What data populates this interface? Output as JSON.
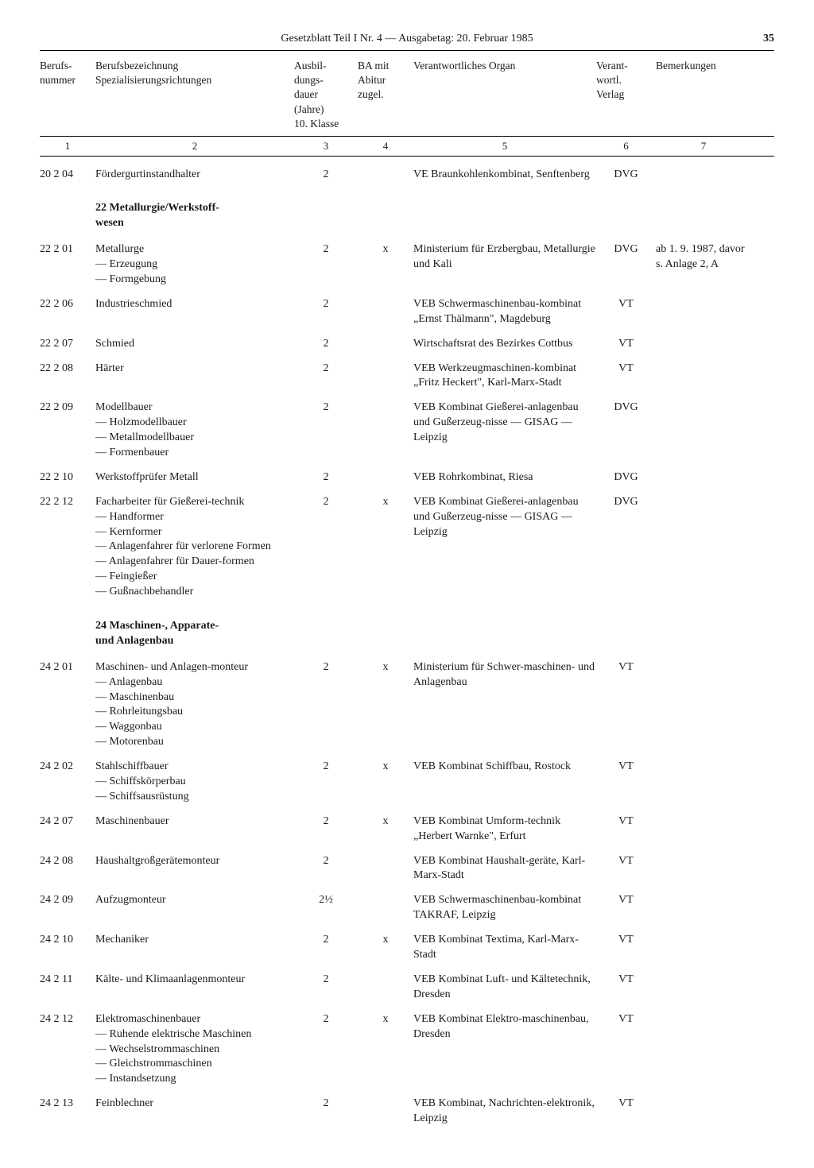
{
  "header": {
    "title": "Gesetzblatt Teil I Nr. 4 — Ausgabetag: 20. Februar 1985",
    "page": "35"
  },
  "columns": {
    "h1": "Berufs-\nnummer",
    "h2": "Berufsbezeichnung\nSpezialisierungsrichtungen",
    "h3": "Ausbil-\ndungs-\ndauer\n(Jahre)\n10. Klasse",
    "h4": "BA mit\nAbitur\nzugel.",
    "h5": "Verantwortliches Organ",
    "h6": "Verant-\nwortl.\nVerlag",
    "h7": "Bemerkungen",
    "n1": "1",
    "n2": "2",
    "n3": "3",
    "n4": "4",
    "n5": "5",
    "n6": "6",
    "n7": "7"
  },
  "sections": {
    "s22": "22  Metallurgie/Werkstoff-\nwesen",
    "s24": "24  Maschinen-, Apparate-\nund Anlagenbau"
  },
  "rows": {
    "r0": {
      "num": "20 2 04",
      "name": "Fördergurtinstandhalter",
      "dur": "2",
      "ba": "",
      "org": "VE Braunkohlenkombinat, Senftenberg",
      "ver": "DVG",
      "bem": ""
    },
    "r1": {
      "num": "22 2 01",
      "name": "Metallurge",
      "sub": [
        "Erzeugung",
        "Formgebung"
      ],
      "dur": "2",
      "ba": "x",
      "org": "Ministerium für Erzbergbau, Metallurgie und Kali",
      "ver": "DVG",
      "bem": "ab 1. 9. 1987, davor\ns. Anlage 2, A"
    },
    "r2": {
      "num": "22 2 06",
      "name": "Industrieschmied",
      "dur": "2",
      "ba": "",
      "org": "VEB Schwermaschinenbau-kombinat „Ernst Thälmann\", Magdeburg",
      "ver": "VT",
      "bem": ""
    },
    "r3": {
      "num": "22 2 07",
      "name": "Schmied",
      "dur": "2",
      "ba": "",
      "org": "Wirtschaftsrat des Bezirkes Cottbus",
      "ver": "VT",
      "bem": ""
    },
    "r4": {
      "num": "22 2 08",
      "name": "Härter",
      "dur": "2",
      "ba": "",
      "org": "VEB Werkzeugmaschinen-kombinat „Fritz Heckert\", Karl-Marx-Stadt",
      "ver": "VT",
      "bem": ""
    },
    "r5": {
      "num": "22 2 09",
      "name": "Modellbauer",
      "sub": [
        "Holzmodellbauer",
        "Metallmodellbauer",
        "Formenbauer"
      ],
      "dur": "2",
      "ba": "",
      "org": "VEB Kombinat Gießerei-anlagenbau und Gußerzeug-nisse — GISAG — Leipzig",
      "ver": "DVG",
      "bem": ""
    },
    "r6": {
      "num": "22 2 10",
      "name": "Werkstoffprüfer Metall",
      "dur": "2",
      "ba": "",
      "org": "VEB Rohrkombinat, Riesa",
      "ver": "DVG",
      "bem": ""
    },
    "r7": {
      "num": "22 2 12",
      "name": "Facharbeiter für Gießerei-technik",
      "sub": [
        "Handformer",
        "Kernformer",
        "Anlagenfahrer für verlorene Formen",
        "Anlagenfahrer für Dauer-formen",
        "Feingießer",
        "Gußnachbehandler"
      ],
      "dur": "2",
      "ba": "x",
      "org": "VEB Kombinat Gießerei-anlagenbau und Gußerzeug-nisse — GISAG — Leipzig",
      "ver": "DVG",
      "bem": ""
    },
    "r8": {
      "num": "24 2 01",
      "name": "Maschinen- und Anlagen-monteur",
      "sub": [
        "Anlagenbau",
        "Maschinenbau",
        "Rohrleitungsbau",
        "Waggonbau",
        "Motorenbau"
      ],
      "dur": "2",
      "ba": "x",
      "org": "Ministerium für Schwer-maschinen- und Anlagenbau",
      "ver": "VT",
      "bem": ""
    },
    "r9": {
      "num": "24 2 02",
      "name": "Stahlschiffbauer",
      "sub": [
        "Schiffskörperbau",
        "Schiffsausrüstung"
      ],
      "dur": "2",
      "ba": "x",
      "org": "VEB Kombinat Schiffbau, Rostock",
      "ver": "VT",
      "bem": ""
    },
    "r10": {
      "num": "24 2 07",
      "name": "Maschinenbauer",
      "dur": "2",
      "ba": "x",
      "org": "VEB Kombinat Umform-technik „Herbert Warnke\", Erfurt",
      "ver": "VT",
      "bem": ""
    },
    "r11": {
      "num": "24 2 08",
      "name": "Haushaltgroßgerätemonteur",
      "dur": "2",
      "ba": "",
      "org": "VEB Kombinat Haushalt-geräte, Karl-Marx-Stadt",
      "ver": "VT",
      "bem": ""
    },
    "r12": {
      "num": "24 2 09",
      "name": "Aufzugmonteur",
      "dur": "2½",
      "ba": "",
      "org": "VEB Schwermaschinenbau-kombinat TAKRAF, Leipzig",
      "ver": "VT",
      "bem": ""
    },
    "r13": {
      "num": "24 2 10",
      "name": "Mechaniker",
      "dur": "2",
      "ba": "x",
      "org": "VEB Kombinat Textima, Karl-Marx-Stadt",
      "ver": "VT",
      "bem": ""
    },
    "r14": {
      "num": "24 2 11",
      "name": "Kälte- und Klimaanlagenmonteur",
      "dur": "2",
      "ba": "",
      "org": "VEB Kombinat Luft- und Kältetechnik, Dresden",
      "ver": "VT",
      "bem": ""
    },
    "r15": {
      "num": "24 2 12",
      "name": "Elektromaschinenbauer",
      "sub": [
        "Ruhende elektrische Maschinen",
        "Wechselstrommaschinen",
        "Gleichstrommaschinen",
        "Instandsetzung"
      ],
      "dur": "2",
      "ba": "x",
      "org": "VEB Kombinat Elektro-maschinenbau, Dresden",
      "ver": "VT",
      "bem": ""
    },
    "r16": {
      "num": "24 2 13",
      "name": "Feinblechner",
      "dur": "2",
      "ba": "",
      "org": "VEB Kombinat, Nachrichten-elektronik, Leipzig",
      "ver": "VT",
      "bem": ""
    }
  },
  "layout": {
    "rows_before_s22": [
      "r0"
    ],
    "rows_s22": [
      "r1",
      "r2",
      "r3",
      "r4",
      "r5",
      "r6",
      "r7"
    ],
    "rows_s24": [
      "r8",
      "r9",
      "r10",
      "r11",
      "r12",
      "r13",
      "r14",
      "r15",
      "r16"
    ]
  }
}
